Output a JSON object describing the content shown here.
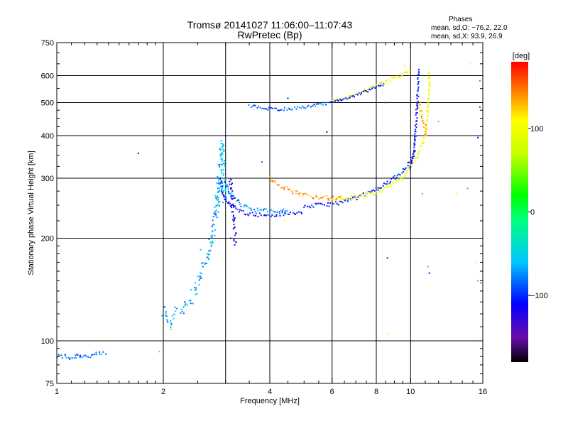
{
  "chart_data": {
    "type": "scatter",
    "title_line1": "Tromsø 20141027 11:06:00–11:07:43",
    "title_line2": "RwPretec (Bp)",
    "stats": {
      "header": "Phases",
      "o_line": "mean, sd,O: −76.2, 22.0",
      "x_line": "mean, sd,X:  93.9, 26.9"
    },
    "xlabel": "Frequency [MHz]",
    "ylabel": "Stationary phase Virtual Height [km]",
    "x_scale": "log",
    "y_scale": "log",
    "xlim": [
      1,
      16
    ],
    "ylim": [
      75,
      750
    ],
    "x_ticks": [
      1,
      2,
      4,
      6,
      8,
      10,
      16
    ],
    "x_tick_labels": [
      "1",
      "2",
      "4",
      "6",
      "8",
      "10",
      "16"
    ],
    "x_minor_ticks": [
      1.1,
      1.2,
      1.3,
      1.4,
      1.5,
      1.6,
      1.7,
      1.8,
      1.9,
      2.5,
      3,
      3.5,
      4.5,
      5,
      5.5,
      6.5,
      7,
      7.5,
      8.5,
      9,
      9.5,
      11,
      12,
      13,
      14,
      15
    ],
    "x_grid": [
      2,
      3,
      4,
      6,
      8,
      10
    ],
    "y_ticks": [
      75,
      100,
      200,
      300,
      400,
      500,
      600,
      750
    ],
    "y_tick_labels": [
      "75",
      "100",
      "200",
      "300",
      "400",
      "500",
      "600",
      "750"
    ],
    "y_minor_ticks": [
      80,
      85,
      90,
      95,
      110,
      120,
      130,
      140,
      150,
      160,
      170,
      180,
      190,
      225,
      250,
      275,
      325,
      350,
      375,
      425,
      450,
      475,
      550,
      650,
      700
    ],
    "y_grid": [
      100,
      200,
      300,
      400,
      500,
      600
    ],
    "grid": true,
    "colorbar": {
      "label": "[deg]",
      "range": [
        -180,
        180
      ],
      "ticks": [
        100,
        0,
        -100
      ],
      "tick_labels": [
        "100",
        "0",
        "−100"
      ],
      "stops": [
        {
          "v": -180,
          "c": "#000000"
        },
        {
          "v": -150,
          "c": "#6a0dad"
        },
        {
          "v": -110,
          "c": "#0000ff"
        },
        {
          "v": -60,
          "c": "#00c8ff"
        },
        {
          "v": -10,
          "c": "#00ff80"
        },
        {
          "v": 20,
          "c": "#00ff00"
        },
        {
          "v": 70,
          "c": "#c8ff00"
        },
        {
          "v": 110,
          "c": "#ffff00"
        },
        {
          "v": 140,
          "c": "#ff9000"
        },
        {
          "v": 180,
          "c": "#ff0000"
        }
      ]
    },
    "traces": [
      {
        "points": [
          [
            1.0,
            90
          ],
          [
            1.05,
            90
          ],
          [
            1.1,
            89
          ],
          [
            1.15,
            91
          ],
          [
            1.2,
            90
          ],
          [
            1.3,
            91
          ],
          [
            1.4,
            92
          ]
        ],
        "phase": -80,
        "spread": 0.015
      },
      {
        "points": [
          [
            2.0,
            123
          ],
          [
            2.05,
            117
          ],
          [
            2.1,
            113
          ],
          [
            2.15,
            120
          ],
          [
            2.25,
            124
          ],
          [
            2.35,
            130
          ],
          [
            2.45,
            140
          ],
          [
            2.55,
            155
          ],
          [
            2.65,
            175
          ],
          [
            2.75,
            200
          ],
          [
            2.8,
            230
          ],
          [
            2.85,
            265
          ],
          [
            2.9,
            290
          ]
        ],
        "phase": -70,
        "spread": 0.035
      },
      {
        "points": [
          [
            2.85,
            250
          ],
          [
            2.88,
            300
          ],
          [
            2.91,
            350
          ],
          [
            2.93,
            380
          ],
          [
            2.95,
            320
          ],
          [
            2.97,
            270
          ],
          [
            3.0,
            255
          ]
        ],
        "phase": -60,
        "spread": 0.03
      },
      {
        "points": [
          [
            2.9,
            300
          ],
          [
            2.95,
            270
          ],
          [
            3.0,
            260
          ],
          [
            3.1,
            250
          ],
          [
            3.3,
            240
          ],
          [
            3.6,
            235
          ],
          [
            4.0,
            233
          ],
          [
            4.5,
            236
          ],
          [
            5.0,
            238
          ]
        ],
        "phase": -105,
        "spread": 0.012
      },
      {
        "points": [
          [
            3.0,
            290
          ],
          [
            3.05,
            275
          ],
          [
            3.15,
            265
          ],
          [
            3.3,
            252
          ],
          [
            3.6,
            243
          ],
          [
            4.0,
            240
          ],
          [
            4.5,
            241
          ]
        ],
        "phase": -75,
        "spread": 0.012
      },
      {
        "points": [
          [
            3.1,
            300
          ],
          [
            3.12,
            270
          ],
          [
            3.15,
            240
          ],
          [
            3.18,
            215
          ],
          [
            3.2,
            190
          ]
        ],
        "phase": -120,
        "spread": 0.02
      },
      {
        "points": [
          [
            4.0,
            300
          ],
          [
            4.3,
            285
          ],
          [
            4.6,
            275
          ],
          [
            5.0,
            268
          ],
          [
            5.5,
            264
          ],
          [
            6.0,
            262
          ],
          [
            6.5,
            263
          ]
        ],
        "phase": 140,
        "spread": 0.012
      },
      {
        "points": [
          [
            5.0,
            248
          ],
          [
            5.5,
            250
          ],
          [
            6.0,
            252
          ],
          [
            6.5,
            256
          ],
          [
            7.0,
            262
          ],
          [
            7.5,
            270
          ],
          [
            8.0,
            278
          ],
          [
            8.5,
            288
          ],
          [
            9.0,
            300
          ],
          [
            9.5,
            315
          ],
          [
            10.0,
            335
          ],
          [
            10.3,
            360
          ]
        ],
        "phase": -105,
        "spread": 0.012
      },
      {
        "points": [
          [
            6.0,
            262
          ],
          [
            6.5,
            262
          ],
          [
            7.0,
            264
          ],
          [
            7.5,
            268
          ],
          [
            8.0,
            272
          ],
          [
            8.5,
            280
          ],
          [
            9.0,
            290
          ],
          [
            9.5,
            305
          ],
          [
            10.0,
            325
          ],
          [
            10.5,
            350
          ],
          [
            10.9,
            390
          ],
          [
            11.1,
            430
          ],
          [
            11.2,
            500
          ],
          [
            11.3,
            560
          ],
          [
            11.3,
            620
          ]
        ],
        "phase": 100,
        "spread": 0.012
      },
      {
        "points": [
          [
            10.0,
            320
          ],
          [
            10.2,
            360
          ],
          [
            10.35,
            420
          ],
          [
            10.45,
            500
          ],
          [
            10.5,
            560
          ],
          [
            10.55,
            630
          ]
        ],
        "phase": -110,
        "spread": 0.012
      },
      {
        "points": [
          [
            10.6,
            500
          ],
          [
            10.8,
            450
          ],
          [
            11.0,
            420
          ],
          [
            11.1,
            400
          ]
        ],
        "phase": 130,
        "spread": 0.015
      },
      {
        "points": [
          [
            3.5,
            490
          ],
          [
            3.8,
            482
          ],
          [
            4.2,
            478
          ],
          [
            4.6,
            480
          ],
          [
            5.0,
            485
          ],
          [
            5.5,
            492
          ],
          [
            6.0,
            500
          ]
        ],
        "phase": -85,
        "spread": 0.008
      },
      {
        "points": [
          [
            6.0,
            505
          ],
          [
            6.5,
            515
          ],
          [
            7.0,
            530
          ],
          [
            7.5,
            545
          ],
          [
            8.0,
            560
          ],
          [
            8.5,
            575
          ],
          [
            9.0,
            590
          ],
          [
            9.5,
            605
          ],
          [
            10.0,
            620
          ]
        ],
        "phase": 110,
        "spread": 0.01
      },
      {
        "points": [
          [
            6.0,
            502
          ],
          [
            6.5,
            510
          ],
          [
            7.0,
            525
          ],
          [
            7.5,
            540
          ],
          [
            8.0,
            555
          ],
          [
            8.5,
            568
          ]
        ],
        "phase": -100,
        "spread": 0.008
      }
    ],
    "isolated_points": [
      [
        1.7,
        355,
        -110
      ],
      [
        1.95,
        93,
        140
      ],
      [
        2.1,
        108,
        10
      ],
      [
        3.0,
        400,
        -120
      ],
      [
        3.1,
        200,
        -130
      ],
      [
        3.8,
        335,
        -80
      ],
      [
        4.5,
        515,
        -110
      ],
      [
        5.8,
        410,
        -110
      ],
      [
        8.5,
        500,
        -90
      ],
      [
        8.6,
        175,
        -120
      ],
      [
        8.6,
        105,
        100
      ],
      [
        9.0,
        305,
        -90
      ],
      [
        9.5,
        295,
        110
      ],
      [
        12.0,
        440,
        140
      ],
      [
        13.5,
        270,
        100
      ],
      [
        14.5,
        280,
        -60
      ],
      [
        14.8,
        650,
        110
      ],
      [
        15.3,
        170,
        100
      ],
      [
        15.5,
        150,
        20
      ],
      [
        15.5,
        395,
        -110
      ],
      [
        15.7,
        580,
        -70
      ],
      [
        15.7,
        485,
        -90
      ],
      [
        15.8,
        148,
        -80
      ],
      [
        11.2,
        165,
        -60
      ],
      [
        11.3,
        158,
        -110
      ],
      [
        4.4,
        226,
        110
      ],
      [
        2.55,
        185,
        -60
      ],
      [
        2.3,
        130,
        -100
      ],
      [
        10.8,
        270,
        -60
      ],
      [
        9.6,
        640,
        100
      ]
    ]
  }
}
